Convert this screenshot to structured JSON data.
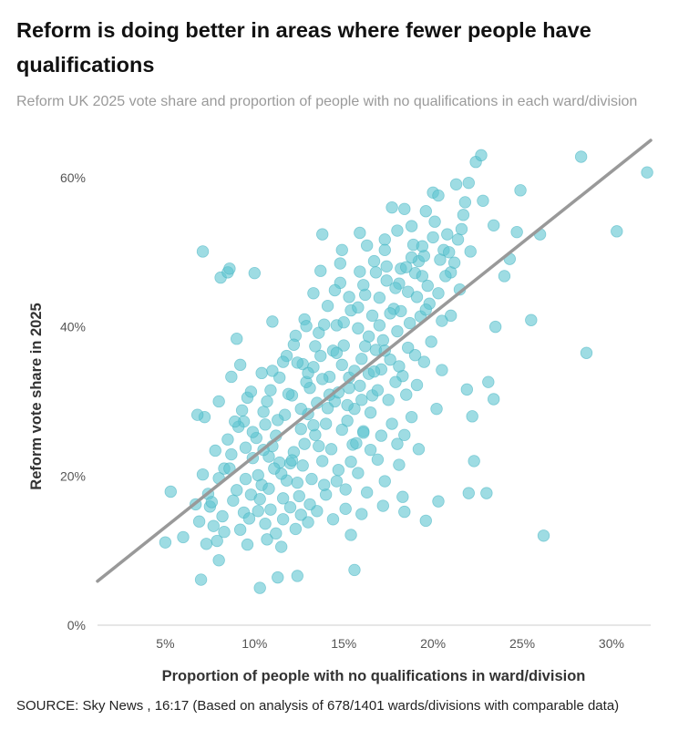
{
  "title": "Reform is doing better in areas where fewer people have qualifications",
  "subtitle": "Reform UK 2025 vote share and proportion of people with no qualifications in each ward/division",
  "source": "SOURCE: Sky News , 16:17 (Based on analysis of 678/1401 wards/divisions with comparable data)",
  "chart_data": {
    "type": "scatter",
    "xlabel": "Proportion of people with no qualifications in ward/division",
    "ylabel": "Reform vote share in 2025",
    "xlim": [
      1.2,
      32.2
    ],
    "ylim": [
      0,
      65
    ],
    "xticks": [
      5,
      10,
      15,
      20,
      25,
      30
    ],
    "xtick_labels": [
      "5%",
      "10%",
      "15%",
      "20%",
      "25%",
      "30%"
    ],
    "yticks": [
      0,
      20,
      40,
      60
    ],
    "ytick_labels": [
      "0%",
      "20%",
      "40%",
      "60%"
    ],
    "grid": false,
    "marker_color": "#5ec4d0",
    "trendline_color": "#999999",
    "trendline": {
      "x": [
        1.2,
        32.2
      ],
      "y": [
        5.9,
        65
      ]
    },
    "points": [
      [
        5.3,
        17.9
      ],
      [
        5.0,
        11.1
      ],
      [
        6.0,
        11.8
      ],
      [
        6.7,
        16.2
      ],
      [
        6.9,
        13.9
      ],
      [
        7.0,
        6.1
      ],
      [
        7.3,
        10.9
      ],
      [
        7.1,
        50.1
      ],
      [
        7.2,
        27.9
      ],
      [
        6.8,
        28.2
      ],
      [
        7.5,
        15.9
      ],
      [
        7.8,
        23.4
      ],
      [
        8.1,
        46.6
      ],
      [
        8.5,
        47.3
      ],
      [
        8.6,
        47.8
      ],
      [
        8.0,
        30.0
      ],
      [
        8.3,
        21.0
      ],
      [
        8.7,
        33.3
      ],
      [
        9.0,
        38.4
      ],
      [
        9.2,
        34.9
      ],
      [
        9.6,
        30.5
      ],
      [
        10.0,
        47.2
      ],
      [
        10.3,
        5.0
      ],
      [
        10.7,
        11.5
      ],
      [
        11.0,
        40.7
      ],
      [
        11.3,
        6.4
      ],
      [
        12.4,
        6.6
      ],
      [
        12.0,
        21.7
      ],
      [
        11.6,
        14.2
      ],
      [
        12.8,
        41.0
      ],
      [
        13.3,
        44.5
      ],
      [
        13.8,
        52.4
      ],
      [
        14.4,
        36.8
      ],
      [
        14.8,
        48.5
      ],
      [
        15.3,
        44.0
      ],
      [
        15.6,
        7.4
      ],
      [
        15.9,
        52.6
      ],
      [
        16.3,
        50.9
      ],
      [
        16.8,
        47.3
      ],
      [
        17.3,
        51.7
      ],
      [
        17.7,
        56.0
      ],
      [
        18.1,
        45.8
      ],
      [
        18.4,
        55.8
      ],
      [
        18.8,
        53.5
      ],
      [
        19.2,
        48.8
      ],
      [
        19.6,
        55.5
      ],
      [
        20.0,
        58.0
      ],
      [
        20.3,
        57.6
      ],
      [
        20.6,
        50.3
      ],
      [
        21.0,
        47.3
      ],
      [
        21.3,
        59.1
      ],
      [
        21.7,
        55.0
      ],
      [
        22.0,
        59.3
      ],
      [
        22.4,
        62.1
      ],
      [
        22.7,
        63.0
      ],
      [
        22.8,
        56.9
      ],
      [
        23.4,
        53.6
      ],
      [
        23.1,
        32.6
      ],
      [
        23.4,
        30.3
      ],
      [
        23.5,
        40.0
      ],
      [
        22.2,
        28.0
      ],
      [
        22.3,
        22.0
      ],
      [
        22.0,
        17.7
      ],
      [
        23.0,
        17.7
      ],
      [
        21.9,
        31.6
      ],
      [
        24.0,
        46.8
      ],
      [
        24.3,
        49.1
      ],
      [
        24.7,
        52.7
      ],
      [
        24.9,
        58.3
      ],
      [
        25.5,
        40.9
      ],
      [
        26.0,
        52.4
      ],
      [
        26.2,
        12.0
      ],
      [
        28.3,
        62.8
      ],
      [
        28.6,
        36.5
      ],
      [
        30.3,
        52.8
      ],
      [
        32.0,
        60.7
      ],
      [
        19.6,
        14.0
      ],
      [
        20.3,
        16.6
      ],
      [
        18.4,
        15.2
      ],
      [
        18.3,
        17.2
      ],
      [
        17.2,
        16.0
      ],
      [
        16.5,
        23.5
      ],
      [
        17.1,
        25.4
      ],
      [
        18.1,
        21.5
      ],
      [
        18.8,
        27.9
      ],
      [
        19.1,
        32.2
      ],
      [
        20.2,
        29.0
      ],
      [
        20.5,
        34.2
      ],
      [
        19.9,
        38.0
      ],
      [
        20.3,
        44.5
      ],
      [
        21.0,
        41.5
      ],
      [
        21.5,
        45.0
      ],
      [
        14.0,
        17.5
      ],
      [
        13.5,
        15.3
      ],
      [
        13.0,
        13.8
      ],
      [
        12.6,
        14.8
      ],
      [
        11.5,
        10.5
      ],
      [
        11.2,
        12.3
      ],
      [
        10.6,
        13.6
      ],
      [
        10.2,
        15.3
      ],
      [
        9.6,
        10.8
      ],
      [
        9.2,
        12.8
      ],
      [
        8.3,
        12.5
      ],
      [
        8.0,
        8.7
      ],
      [
        7.7,
        13.3
      ],
      [
        7.1,
        20.2
      ],
      [
        7.4,
        17.6
      ],
      [
        8.0,
        19.7
      ],
      [
        8.5,
        24.9
      ],
      [
        9.4,
        27.3
      ],
      [
        9.9,
        22.4
      ],
      [
        10.5,
        28.6
      ],
      [
        10.9,
        31.5
      ],
      [
        11.4,
        33.2
      ],
      [
        11.8,
        36.1
      ],
      [
        12.3,
        38.8
      ],
      [
        12.7,
        35.0
      ],
      [
        13.1,
        31.8
      ],
      [
        13.6,
        39.2
      ],
      [
        14.1,
        42.8
      ],
      [
        14.6,
        40.2
      ],
      [
        15.0,
        37.5
      ],
      [
        15.4,
        42.2
      ],
      [
        15.8,
        39.8
      ],
      [
        16.2,
        44.3
      ],
      [
        16.6,
        41.5
      ],
      [
        17.0,
        43.9
      ],
      [
        17.4,
        46.2
      ],
      [
        17.8,
        42.4
      ],
      [
        18.2,
        47.8
      ],
      [
        18.6,
        44.7
      ],
      [
        19.0,
        47.2
      ],
      [
        19.4,
        46.8
      ],
      [
        19.8,
        43.1
      ],
      [
        15.2,
        27.4
      ],
      [
        15.5,
        24.2
      ],
      [
        16.0,
        30.2
      ],
      [
        16.4,
        33.7
      ],
      [
        16.8,
        36.9
      ],
      [
        17.2,
        38.2
      ],
      [
        17.6,
        35.6
      ],
      [
        18.0,
        39.4
      ],
      [
        18.3,
        33.4
      ],
      [
        18.6,
        37.2
      ],
      [
        19.0,
        36.2
      ],
      [
        13.8,
        22.0
      ],
      [
        13.4,
        25.5
      ],
      [
        13.0,
        28.3
      ],
      [
        12.6,
        26.3
      ],
      [
        12.2,
        23.2
      ],
      [
        11.8,
        19.4
      ],
      [
        11.4,
        21.8
      ],
      [
        11.0,
        24.0
      ],
      [
        10.6,
        26.9
      ],
      [
        10.2,
        20.1
      ],
      [
        9.8,
        17.5
      ],
      [
        9.4,
        15.1
      ],
      [
        9.0,
        18.1
      ],
      [
        8.6,
        21.0
      ],
      [
        12.9,
        32.6
      ],
      [
        13.3,
        34.6
      ],
      [
        13.7,
        36.1
      ],
      [
        14.2,
        33.3
      ],
      [
        14.5,
        30.0
      ],
      [
        14.9,
        34.9
      ],
      [
        15.3,
        31.8
      ],
      [
        15.6,
        29.0
      ],
      [
        16.1,
        26.0
      ],
      [
        16.5,
        28.5
      ],
      [
        14.0,
        27.0
      ],
      [
        13.5,
        29.8
      ],
      [
        12.1,
        30.8
      ],
      [
        11.7,
        28.2
      ],
      [
        11.2,
        25.4
      ],
      [
        10.8,
        22.6
      ],
      [
        10.4,
        18.8
      ],
      [
        14.3,
        23.6
      ],
      [
        14.7,
        20.8
      ],
      [
        15.1,
        18.2
      ],
      [
        13.2,
        19.6
      ],
      [
        12.5,
        17.3
      ],
      [
        12.0,
        15.8
      ],
      [
        17.5,
        30.2
      ],
      [
        17.9,
        32.6
      ],
      [
        18.5,
        30.9
      ],
      [
        16.9,
        22.2
      ],
      [
        15.8,
        20.4
      ],
      [
        16.3,
        17.8
      ],
      [
        14.4,
        14.2
      ],
      [
        15.1,
        15.6
      ],
      [
        15.7,
        24.4
      ],
      [
        13.9,
        40.3
      ],
      [
        14.8,
        45.9
      ],
      [
        15.9,
        47.4
      ],
      [
        16.7,
        48.8
      ],
      [
        17.3,
        50.3
      ],
      [
        18.0,
        52.9
      ],
      [
        18.9,
        51.0
      ],
      [
        19.5,
        49.5
      ],
      [
        20.1,
        54.1
      ],
      [
        20.8,
        52.4
      ],
      [
        21.6,
        53.1
      ],
      [
        22.1,
        50.1
      ],
      [
        21.2,
        48.6
      ],
      [
        20.7,
        46.8
      ],
      [
        19.3,
        41.4
      ],
      [
        18.7,
        40.5
      ],
      [
        17.1,
        34.3
      ],
      [
        16.0,
        35.7
      ],
      [
        15.3,
        33.2
      ],
      [
        14.6,
        36.5
      ],
      [
        13.0,
        33.8
      ],
      [
        12.4,
        35.2
      ],
      [
        11.9,
        31.0
      ],
      [
        11.3,
        27.5
      ],
      [
        10.7,
        30.0
      ],
      [
        10.1,
        25.1
      ],
      [
        9.5,
        23.8
      ],
      [
        9.1,
        26.6
      ],
      [
        8.8,
        16.7
      ],
      [
        8.2,
        14.6
      ],
      [
        7.9,
        11.3
      ],
      [
        7.6,
        16.5
      ],
      [
        12.7,
        21.4
      ],
      [
        13.6,
        24.0
      ],
      [
        14.9,
        26.2
      ],
      [
        15.4,
        21.9
      ],
      [
        16.1,
        25.8
      ],
      [
        16.6,
        30.8
      ],
      [
        17.7,
        27.0
      ],
      [
        18.4,
        25.5
      ],
      [
        19.2,
        23.6
      ],
      [
        12.3,
        12.9
      ],
      [
        13.1,
        16.2
      ],
      [
        11.6,
        17.0
      ],
      [
        10.9,
        15.5
      ],
      [
        14.2,
        30.9
      ],
      [
        13.8,
        33.0
      ],
      [
        12.6,
        29.0
      ],
      [
        15.0,
        40.6
      ],
      [
        16.4,
        38.7
      ],
      [
        17.6,
        41.8
      ],
      [
        18.2,
        42.1
      ],
      [
        19.1,
        44.0
      ],
      [
        19.7,
        45.5
      ],
      [
        20.4,
        49.0
      ],
      [
        21.8,
        56.7
      ],
      [
        21.4,
        51.7
      ],
      [
        20.9,
        50.0
      ],
      [
        20.0,
        52.0
      ],
      [
        19.4,
        50.8
      ],
      [
        18.8,
        49.3
      ],
      [
        17.9,
        45.2
      ],
      [
        17.0,
        40.2
      ],
      [
        16.2,
        37.4
      ],
      [
        15.6,
        34.1
      ],
      [
        14.7,
        31.2
      ],
      [
        14.1,
        29.1
      ],
      [
        13.3,
        26.8
      ],
      [
        12.8,
        24.3
      ],
      [
        12.1,
        22.1
      ],
      [
        11.5,
        20.3
      ],
      [
        10.8,
        18.3
      ],
      [
        10.3,
        16.9
      ],
      [
        9.7,
        14.3
      ],
      [
        15.4,
        12.1
      ],
      [
        16.0,
        14.9
      ],
      [
        17.3,
        19.3
      ],
      [
        18.0,
        24.3
      ],
      [
        16.9,
        31.5
      ],
      [
        15.8,
        42.6
      ],
      [
        14.5,
        44.9
      ],
      [
        13.7,
        47.5
      ],
      [
        14.9,
        50.3
      ],
      [
        16.1,
        45.6
      ],
      [
        17.4,
        48.1
      ],
      [
        18.5,
        48.0
      ],
      [
        19.6,
        42.3
      ],
      [
        20.5,
        40.8
      ],
      [
        15.2,
        29.5
      ],
      [
        15.9,
        32.1
      ],
      [
        16.7,
        34.0
      ],
      [
        17.3,
        36.8
      ],
      [
        18.1,
        34.7
      ],
      [
        19.5,
        35.3
      ],
      [
        13.4,
        37.4
      ],
      [
        12.9,
        40.1
      ],
      [
        12.2,
        37.6
      ],
      [
        11.6,
        35.3
      ],
      [
        11.0,
        34.1
      ],
      [
        10.4,
        33.8
      ],
      [
        9.8,
        31.3
      ],
      [
        9.3,
        28.8
      ],
      [
        8.9,
        27.3
      ],
      [
        13.9,
        18.8
      ],
      [
        14.6,
        19.3
      ],
      [
        12.4,
        19.1
      ],
      [
        11.1,
        21.0
      ],
      [
        10.5,
        23.5
      ],
      [
        9.9,
        25.9
      ],
      [
        9.5,
        19.6
      ],
      [
        8.7,
        22.9
      ]
    ]
  }
}
